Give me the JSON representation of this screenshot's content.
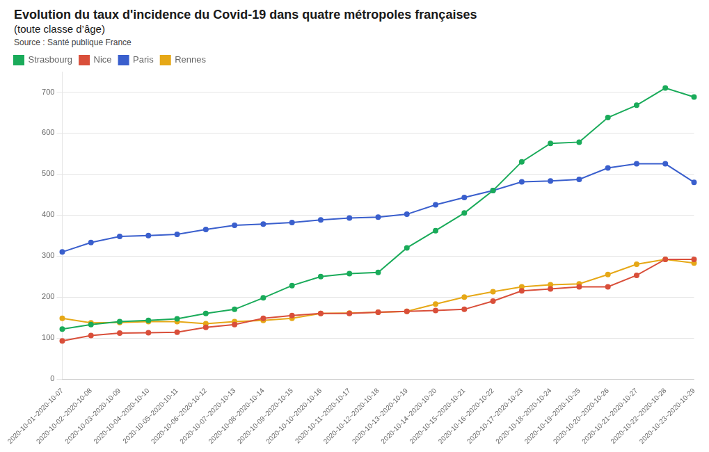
{
  "chart_data": {
    "type": "line",
    "title": "Evolution du taux d'incidence du Covid-19 dans quatre métropoles françaises",
    "subtitle": "(toute classe d’âge)",
    "source": "Source : Santé publique France",
    "categories": [
      "2020-10-01~2020-10-07",
      "2020-10-02~2020-10-08",
      "2020-10-03~2020-10-09",
      "2020-10-04~2020-10-10",
      "2020-10-05~2020-10-11",
      "2020-10-06~2020-10-12",
      "2020-10-07~2020-10-13",
      "2020-10-08~2020-10-14",
      "2020-10-09~2020-10-15",
      "2020-10-10~2020-10-16",
      "2020-10-11~2020-10-17",
      "2020-10-12~2020-10-18",
      "2020-10-13~2020-10-19",
      "2020-10-14~2020-10-20",
      "2020-10-15~2020-10-21",
      "2020-10-16~2020-10-22",
      "2020-10-17~2020-10-23",
      "2020-10-18~2020-10-24",
      "2020-10-19~2020-10-25",
      "2020-10-20~2020-10-26",
      "2020-10-21~2020-10-27",
      "2020-10-22~2020-10-28",
      "2020-10-23~2020-10-29"
    ],
    "series": [
      {
        "name": "Strasbourg",
        "color": "#1aab5a",
        "values": [
          122,
          133,
          140,
          143,
          147,
          160,
          170,
          198,
          228,
          250,
          257,
          260,
          320,
          362,
          405,
          460,
          530,
          575,
          578,
          638,
          668,
          710,
          688
        ]
      },
      {
        "name": "Nice",
        "color": "#d94f3a",
        "values": [
          93,
          106,
          112,
          113,
          114,
          126,
          133,
          148,
          155,
          160,
          160,
          163,
          165,
          167,
          170,
          190,
          215,
          220,
          225,
          225,
          253,
          292,
          292
        ]
      },
      {
        "name": "Paris",
        "color": "#3a5fcd",
        "values": [
          310,
          333,
          348,
          350,
          353,
          365,
          375,
          378,
          382,
          388,
          393,
          395,
          402,
          425,
          443,
          460,
          481,
          483,
          487,
          515,
          525,
          525,
          480
        ]
      },
      {
        "name": "Rennes",
        "color": "#e6a817",
        "values": [
          148,
          137,
          138,
          140,
          140,
          135,
          140,
          143,
          148,
          160,
          161,
          163,
          165,
          183,
          200,
          213,
          225,
          230,
          232,
          255,
          280,
          292,
          283
        ]
      }
    ],
    "ylim": [
      0,
      750
    ],
    "yticks": [
      0,
      100,
      200,
      300,
      400,
      500,
      600,
      700
    ],
    "grid": true,
    "legend": "upper left",
    "marker": "circle",
    "line_style": "solid"
  }
}
